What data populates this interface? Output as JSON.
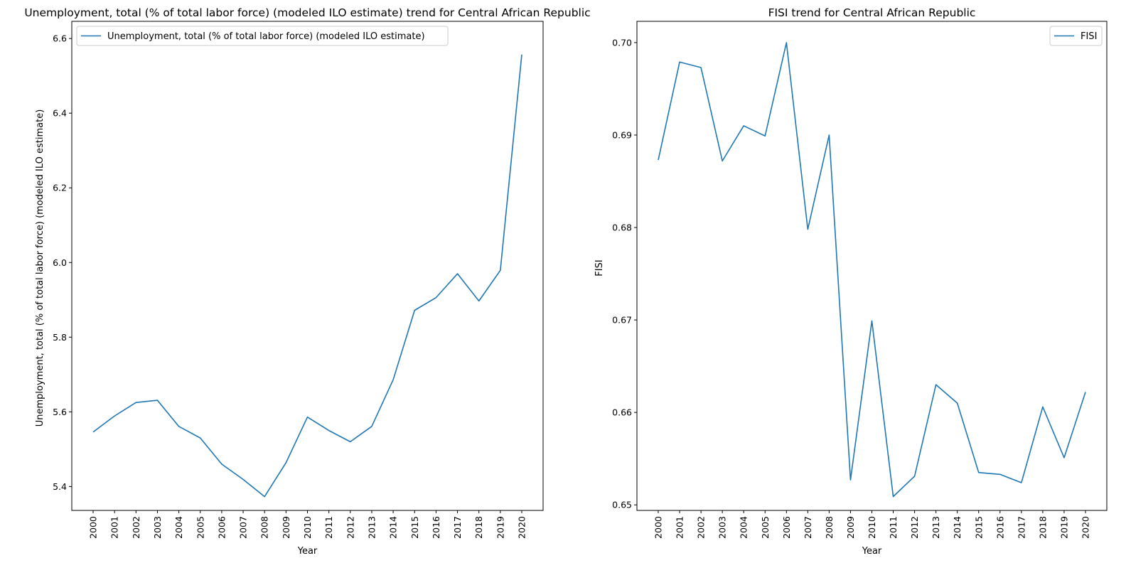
{
  "colors": {
    "line": "#1f77b4",
    "axes": "#000000",
    "legend_border": "#cccccc"
  },
  "chart_data": [
    {
      "type": "line",
      "title": "Unemployment, total (% of total labor force) (modeled ILO estimate) trend for Central African Republic",
      "xlabel": "Year",
      "ylabel": "Unemployment, total (% of total labor force) (modeled ILO estimate)",
      "categories": [
        "2000",
        "2001",
        "2002",
        "2003",
        "2004",
        "2005",
        "2006",
        "2007",
        "2008",
        "2009",
        "2010",
        "2011",
        "2012",
        "2013",
        "2014",
        "2015",
        "2016",
        "2017",
        "2018",
        "2019",
        "2020"
      ],
      "yticks": [
        5.4,
        5.6,
        5.8,
        6.0,
        6.2,
        6.4,
        6.6
      ],
      "ylim": [
        5.336,
        6.646
      ],
      "grid": false,
      "legend_position": "upper left",
      "series": [
        {
          "name": "Unemployment, total (% of total labor force) (modeled ILO estimate)",
          "values": [
            5.546,
            5.589,
            5.625,
            5.631,
            5.561,
            5.53,
            5.46,
            5.419,
            5.373,
            5.464,
            5.586,
            5.55,
            5.52,
            5.561,
            5.686,
            5.872,
            5.906,
            5.97,
            5.897,
            5.979,
            6.557
          ]
        }
      ]
    },
    {
      "type": "line",
      "title": "FISI trend for Central African Republic",
      "xlabel": "Year",
      "ylabel": "FISI",
      "categories": [
        "2000",
        "2001",
        "2002",
        "2003",
        "2004",
        "2005",
        "2006",
        "2007",
        "2008",
        "2009",
        "2010",
        "2011",
        "2012",
        "2013",
        "2014",
        "2015",
        "2016",
        "2017",
        "2018",
        "2019",
        "2020"
      ],
      "yticks": [
        0.65,
        0.66,
        0.67,
        0.68,
        0.69,
        0.7
      ],
      "ylim": [
        0.6494,
        0.7023
      ],
      "grid": false,
      "legend_position": "upper right",
      "series": [
        {
          "name": "FISI",
          "values": [
            0.6873,
            0.6979,
            0.6973,
            0.6872,
            0.691,
            0.6899,
            0.7,
            0.6798,
            0.69,
            0.6527,
            0.6699,
            0.6509,
            0.6531,
            0.663,
            0.661,
            0.6535,
            0.6533,
            0.6524,
            0.6606,
            0.6551,
            0.6622
          ]
        }
      ]
    }
  ]
}
